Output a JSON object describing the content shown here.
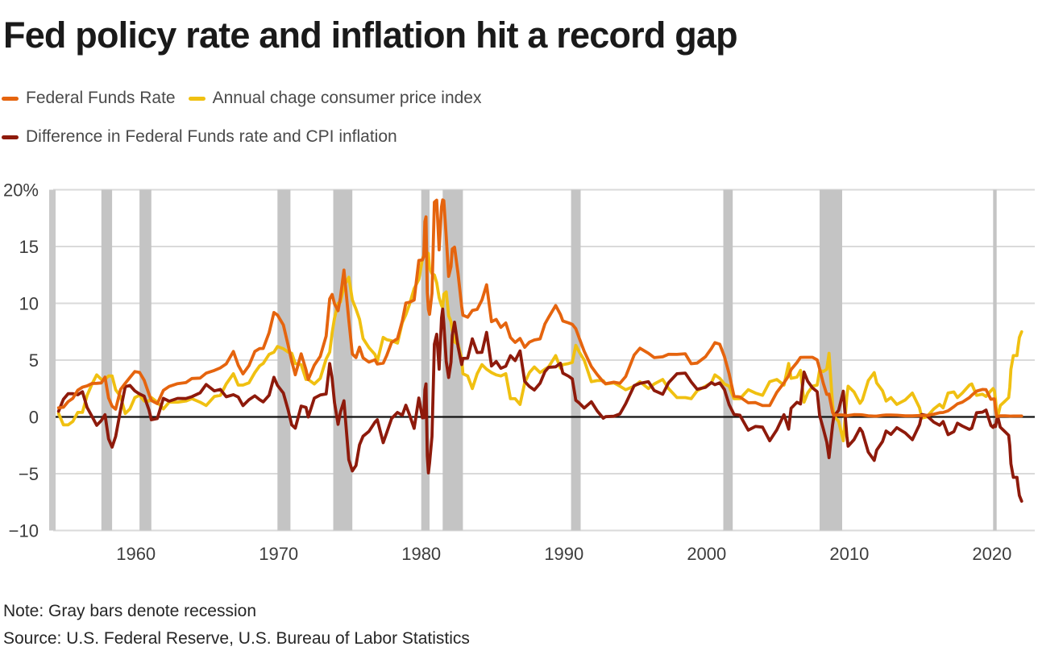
{
  "title": "Fed policy rate and inflation hit a record gap",
  "legend": [
    {
      "label": "Federal Funds Rate",
      "color": "#E5640E"
    },
    {
      "label": "Annual chage consumer price index",
      "color": "#F0C011"
    },
    {
      "label": "Difference in Federal Funds rate and CPI inflation",
      "color": "#8E1A0B"
    }
  ],
  "note": "Note: Gray bars denote recession",
  "source": "Source: U.S. Federal Reserve, U.S. Bureau of Labor Statistics",
  "colors": {
    "orange": "#E5640E",
    "yellow": "#F0C011",
    "dark_red": "#8E1A0B",
    "grid": "#DADADA",
    "recession": "#C4C4C4",
    "axis_bar": "#C9C9C9",
    "zero_line": "#111111",
    "text": "#3d3d3d"
  },
  "chart_data": {
    "type": "line",
    "title": "Fed policy rate and inflation hit a record gap",
    "xlabel": "",
    "ylabel": "%",
    "grid": true,
    "legend_position": "top-left",
    "x_axis": {
      "range": [
        1954.2,
        2023.0
      ],
      "ticks": [
        1960,
        1970,
        1980,
        1990,
        2000,
        2010,
        2020
      ]
    },
    "y_axis": {
      "range": [
        -10,
        20
      ],
      "ticks": [
        {
          "value": 20,
          "label": "20%"
        },
        {
          "value": 15,
          "label": "15"
        },
        {
          "value": 10,
          "label": "10"
        },
        {
          "value": 5,
          "label": "5"
        },
        {
          "value": 0,
          "label": "0"
        },
        {
          "value": -5,
          "label": "−5"
        },
        {
          "value": -10,
          "label": "−10"
        }
      ]
    },
    "recessions": [
      [
        1957.58,
        1958.33
      ],
      [
        1960.25,
        1961.08
      ],
      [
        1969.92,
        1970.83
      ],
      [
        1973.83,
        1975.17
      ],
      [
        1980.0,
        1980.58
      ],
      [
        1981.5,
        1982.92
      ],
      [
        1990.5,
        1991.17
      ],
      [
        2001.17,
        2001.83
      ],
      [
        2007.92,
        2009.5
      ],
      [
        2020.08,
        2020.33
      ]
    ],
    "x": [
      1954.58,
      1954.92,
      1955.25,
      1955.58,
      1955.92,
      1956.25,
      1956.58,
      1956.92,
      1957.25,
      1957.58,
      1957.83,
      1958.08,
      1958.33,
      1958.58,
      1958.92,
      1959.25,
      1959.58,
      1959.92,
      1960.25,
      1960.58,
      1960.92,
      1961.08,
      1961.5,
      1961.92,
      1962.33,
      1962.92,
      1963.5,
      1963.92,
      1964.5,
      1964.92,
      1965.5,
      1965.92,
      1966.33,
      1966.83,
      1967.17,
      1967.5,
      1967.92,
      1968.33,
      1968.67,
      1968.92,
      1969.33,
      1969.67,
      1969.92,
      1970.33,
      1970.67,
      1970.92,
      1971.17,
      1971.58,
      1971.92,
      1972.08,
      1972.5,
      1972.92,
      1973.33,
      1973.58,
      1973.75,
      1973.92,
      1974.17,
      1974.33,
      1974.58,
      1974.92,
      1975.17,
      1975.42,
      1975.67,
      1975.92,
      1976.33,
      1976.75,
      1976.92,
      1977.33,
      1977.58,
      1977.92,
      1978.33,
      1978.67,
      1978.92,
      1979.17,
      1979.5,
      1979.83,
      1980.08,
      1980.17,
      1980.25,
      1980.33,
      1980.42,
      1980.5,
      1980.58,
      1980.75,
      1980.92,
      1981.08,
      1981.25,
      1981.42,
      1981.5,
      1981.58,
      1981.75,
      1981.92,
      1982.08,
      1982.17,
      1982.33,
      1982.58,
      1982.83,
      1982.92,
      1983.25,
      1983.58,
      1983.92,
      1984.25,
      1984.58,
      1984.92,
      1985.25,
      1985.58,
      1985.92,
      1986.25,
      1986.58,
      1986.92,
      1987.25,
      1987.58,
      1987.92,
      1988.33,
      1988.67,
      1988.92,
      1989.42,
      1989.75,
      1989.92,
      1990.33,
      1990.58,
      1990.83,
      1991.08,
      1991.42,
      1991.92,
      1992.33,
      1992.75,
      1992.92,
      1993.5,
      1993.92,
      1994.33,
      1994.92,
      1995.33,
      1995.92,
      1996.33,
      1996.92,
      1997.33,
      1997.92,
      1998.5,
      1998.92,
      1999.33,
      1999.92,
      2000.33,
      2000.58,
      2000.92,
      2001.25,
      2001.58,
      2001.92,
      2002.33,
      2002.92,
      2003.42,
      2003.92,
      2004.42,
      2004.92,
      2005.42,
      2005.75,
      2005.92,
      2006.33,
      2006.58,
      2006.83,
      2007.08,
      2007.42,
      2007.75,
      2007.92,
      2008.17,
      2008.42,
      2008.58,
      2008.83,
      2008.92,
      2009.25,
      2009.58,
      2009.83,
      2009.92,
      2010.33,
      2010.75,
      2010.92,
      2011.33,
      2011.75,
      2011.92,
      2012.33,
      2012.58,
      2012.92,
      2013.33,
      2013.92,
      2014.42,
      2014.92,
      2015.08,
      2015.42,
      2015.92,
      2016.33,
      2016.58,
      2016.92,
      2017.33,
      2017.58,
      2017.92,
      2018.42,
      2018.58,
      2018.92,
      2019.33,
      2019.58,
      2019.92,
      2020.08,
      2020.17,
      2020.25,
      2020.33,
      2020.42,
      2020.58,
      2020.92,
      2021.17,
      2021.25,
      2021.33,
      2021.5,
      2021.75,
      2021.83,
      2021.92,
      2022.08
    ],
    "series": [
      {
        "id": "federal-funds-rate",
        "name": "Federal Funds Rate",
        "color": "#E5640E",
        "values": [
          0.8,
          0.85,
          1.35,
          1.64,
          2.35,
          2.62,
          2.73,
          2.94,
          2.96,
          2.99,
          3.5,
          1.67,
          0.94,
          0.68,
          2.42,
          2.96,
          3.47,
          3.99,
          3.92,
          3.23,
          1.98,
          1.45,
          1.16,
          2.33,
          2.68,
          2.93,
          3.02,
          3.38,
          3.42,
          3.85,
          4.09,
          4.32,
          4.67,
          5.76,
          4.55,
          3.79,
          4.51,
          5.76,
          6.02,
          6.02,
          7.41,
          9.19,
          8.97,
          8.1,
          6.29,
          4.9,
          3.71,
          5.55,
          4.14,
          3.29,
          4.55,
          5.33,
          7.12,
          10.4,
          10.78,
          9.95,
          9.35,
          10.51,
          12.92,
          8.53,
          5.54,
          5.22,
          6.14,
          5.2,
          4.82,
          5.03,
          4.65,
          4.73,
          5.42,
          6.56,
          6.89,
          8.45,
          10.03,
          10.09,
          10.29,
          13.77,
          13.82,
          14.13,
          17.19,
          17.61,
          10.98,
          9.47,
          9.03,
          10.87,
          18.9,
          19.08,
          14.7,
          18.52,
          19.1,
          19.04,
          15.87,
          12.37,
          13.22,
          14.78,
          14.94,
          12.59,
          9.71,
          8.95,
          8.77,
          9.37,
          9.47,
          10.29,
          11.64,
          8.38,
          8.58,
          7.88,
          8.27,
          6.99,
          6.56,
          6.91,
          6.13,
          6.58,
          6.77,
          6.87,
          8.19,
          8.76,
          9.81,
          9.02,
          8.45,
          8.28,
          8.15,
          7.76,
          6.91,
          5.78,
          4.43,
          3.73,
          3.09,
          2.92,
          3.06,
          2.96,
          3.56,
          5.45,
          6.05,
          5.6,
          5.22,
          5.29,
          5.51,
          5.5,
          5.56,
          4.68,
          4.74,
          5.3,
          6.02,
          6.54,
          6.4,
          5.31,
          3.77,
          1.82,
          1.75,
          1.24,
          1.26,
          1.0,
          1.0,
          2.16,
          3.0,
          3.62,
          4.16,
          4.79,
          5.24,
          5.25,
          5.25,
          5.25,
          5.02,
          4.24,
          2.98,
          1.98,
          2.01,
          0.39,
          0.16,
          0.18,
          0.16,
          0.12,
          0.12,
          0.2,
          0.19,
          0.18,
          0.1,
          0.07,
          0.07,
          0.14,
          0.16,
          0.16,
          0.15,
          0.09,
          0.09,
          0.12,
          0.11,
          0.13,
          0.24,
          0.37,
          0.39,
          0.54,
          0.9,
          1.15,
          1.3,
          1.7,
          1.91,
          2.27,
          2.42,
          2.4,
          1.55,
          1.58,
          1.58,
          0.65,
          0.05,
          0.05,
          0.09,
          0.09,
          0.08,
          0.07,
          0.07,
          0.08,
          0.08,
          0.08,
          0.08,
          0.08
        ]
      },
      {
        "id": "cpi-inflation",
        "name": "Annual chage consumer price index",
        "color": "#F0C011",
        "values": [
          0.3,
          -0.7,
          -0.7,
          -0.4,
          0.4,
          0.4,
          1.9,
          2.9,
          3.7,
          3.3,
          3.3,
          3.6,
          3.6,
          2.4,
          1.8,
          0.3,
          0.7,
          1.7,
          1.9,
          1.4,
          1.4,
          1.7,
          1.3,
          0.7,
          1.3,
          1.3,
          1.4,
          1.6,
          1.3,
          1.0,
          1.8,
          1.9,
          2.9,
          3.8,
          2.8,
          2.8,
          3.0,
          3.9,
          4.5,
          4.7,
          5.5,
          5.7,
          6.2,
          6.0,
          5.7,
          5.6,
          4.7,
          4.6,
          3.3,
          3.3,
          2.9,
          3.4,
          5.1,
          5.7,
          7.4,
          8.7,
          10.0,
          10.1,
          11.5,
          12.3,
          10.3,
          9.5,
          8.6,
          6.9,
          6.1,
          5.5,
          4.9,
          7.0,
          6.8,
          6.7,
          6.5,
          8.3,
          9.0,
          9.9,
          11.3,
          12.1,
          13.9,
          14.2,
          14.8,
          14.7,
          14.4,
          14.4,
          13.1,
          12.6,
          12.5,
          11.8,
          10.5,
          9.8,
          9.6,
          10.8,
          11.0,
          8.9,
          8.4,
          7.6,
          6.6,
          6.4,
          5.1,
          3.8,
          3.6,
          2.5,
          3.8,
          4.6,
          4.2,
          3.9,
          3.7,
          3.6,
          3.8,
          1.6,
          1.6,
          1.1,
          3.0,
          3.9,
          4.4,
          3.9,
          4.2,
          4.4,
          5.4,
          4.3,
          4.6,
          4.7,
          4.8,
          6.3,
          5.7,
          5.0,
          3.1,
          3.2,
          3.2,
          2.9,
          3.0,
          2.7,
          2.4,
          2.7,
          3.1,
          2.5,
          2.9,
          3.3,
          2.5,
          1.7,
          1.7,
          1.6,
          2.3,
          2.7,
          3.0,
          3.7,
          3.4,
          2.9,
          2.7,
          1.6,
          1.6,
          2.4,
          2.1,
          1.9,
          3.1,
          3.3,
          2.8,
          4.7,
          3.4,
          3.5,
          4.1,
          1.3,
          2.1,
          2.7,
          2.8,
          4.1,
          4.0,
          4.2,
          5.6,
          1.1,
          0.1,
          -0.4,
          -2.1,
          1.8,
          2.7,
          2.2,
          1.2,
          1.5,
          3.2,
          3.9,
          3.0,
          2.3,
          1.4,
          1.7,
          1.1,
          1.5,
          2.1,
          0.8,
          -0.1,
          0.0,
          0.7,
          1.1,
          0.8,
          2.1,
          2.2,
          1.7,
          2.1,
          2.8,
          2.9,
          1.9,
          2.0,
          1.8,
          2.3,
          2.5,
          2.3,
          1.5,
          0.3,
          0.1,
          1.0,
          1.4,
          1.7,
          2.6,
          4.2,
          5.4,
          5.4,
          6.2,
          7.0,
          7.5
        ]
      },
      {
        "id": "difference-ffr-cpi",
        "name": "Difference in Federal Funds rate and CPI inflation",
        "color": "#8E1A0B",
        "values": [
          0.5,
          1.55,
          2.05,
          2.04,
          1.95,
          2.22,
          0.83,
          0.04,
          -0.74,
          -0.31,
          0.2,
          -1.93,
          -2.66,
          -1.72,
          0.62,
          2.66,
          2.77,
          2.29,
          2.02,
          1.83,
          0.58,
          -0.25,
          -0.14,
          1.63,
          1.38,
          1.63,
          1.62,
          1.78,
          2.12,
          2.85,
          2.29,
          2.42,
          1.77,
          1.96,
          1.75,
          0.99,
          1.51,
          1.86,
          1.52,
          1.32,
          1.91,
          3.49,
          2.77,
          2.1,
          0.59,
          -0.7,
          -0.99,
          0.95,
          0.84,
          -0.01,
          1.65,
          1.93,
          2.02,
          4.7,
          3.38,
          1.25,
          -0.65,
          0.41,
          1.42,
          -3.77,
          -4.76,
          -4.28,
          -2.46,
          -1.7,
          -1.28,
          -0.47,
          -0.25,
          -2.27,
          -1.38,
          -0.14,
          0.39,
          0.15,
          1.03,
          0.19,
          -1.01,
          1.67,
          -0.08,
          -0.07,
          2.39,
          2.91,
          -3.42,
          -4.93,
          -4.07,
          -1.73,
          6.4,
          7.28,
          4.2,
          8.72,
          9.5,
          8.24,
          4.87,
          3.47,
          4.82,
          7.18,
          8.34,
          6.19,
          4.61,
          5.15,
          5.17,
          6.87,
          5.67,
          5.69,
          7.44,
          4.48,
          4.88,
          4.28,
          4.47,
          5.39,
          4.96,
          5.81,
          3.13,
          2.68,
          2.37,
          2.97,
          3.99,
          4.36,
          4.41,
          4.72,
          3.85,
          3.58,
          3.35,
          1.46,
          1.21,
          0.78,
          1.33,
          0.53,
          -0.11,
          0.02,
          0.06,
          0.26,
          1.16,
          2.75,
          2.95,
          3.1,
          2.32,
          1.99,
          3.01,
          3.8,
          3.86,
          3.08,
          2.44,
          2.6,
          3.02,
          2.84,
          3.0,
          2.41,
          1.07,
          0.22,
          0.15,
          -1.16,
          -0.84,
          -0.9,
          -2.1,
          -1.14,
          0.2,
          -1.08,
          0.76,
          1.29,
          1.14,
          3.95,
          3.15,
          2.55,
          2.22,
          0.14,
          -1.02,
          -2.22,
          -3.59,
          -0.71,
          0.06,
          0.58,
          2.26,
          -1.68,
          -2.58,
          -2.0,
          -1.01,
          -1.32,
          -3.1,
          -3.83,
          -2.93,
          -2.16,
          -1.24,
          -1.54,
          -0.95,
          -1.41,
          -2.01,
          -0.68,
          0.21,
          0.13,
          -0.46,
          -0.73,
          -0.41,
          -1.56,
          -1.3,
          -0.55,
          -0.8,
          -1.1,
          -0.99,
          0.37,
          0.42,
          0.6,
          -0.75,
          -0.92,
          -0.72,
          -0.85,
          -0.25,
          -0.05,
          -0.91,
          -1.31,
          -1.62,
          -2.53,
          -4.13,
          -5.32,
          -5.32,
          -6.12,
          -6.92,
          -7.42
        ]
      }
    ]
  }
}
